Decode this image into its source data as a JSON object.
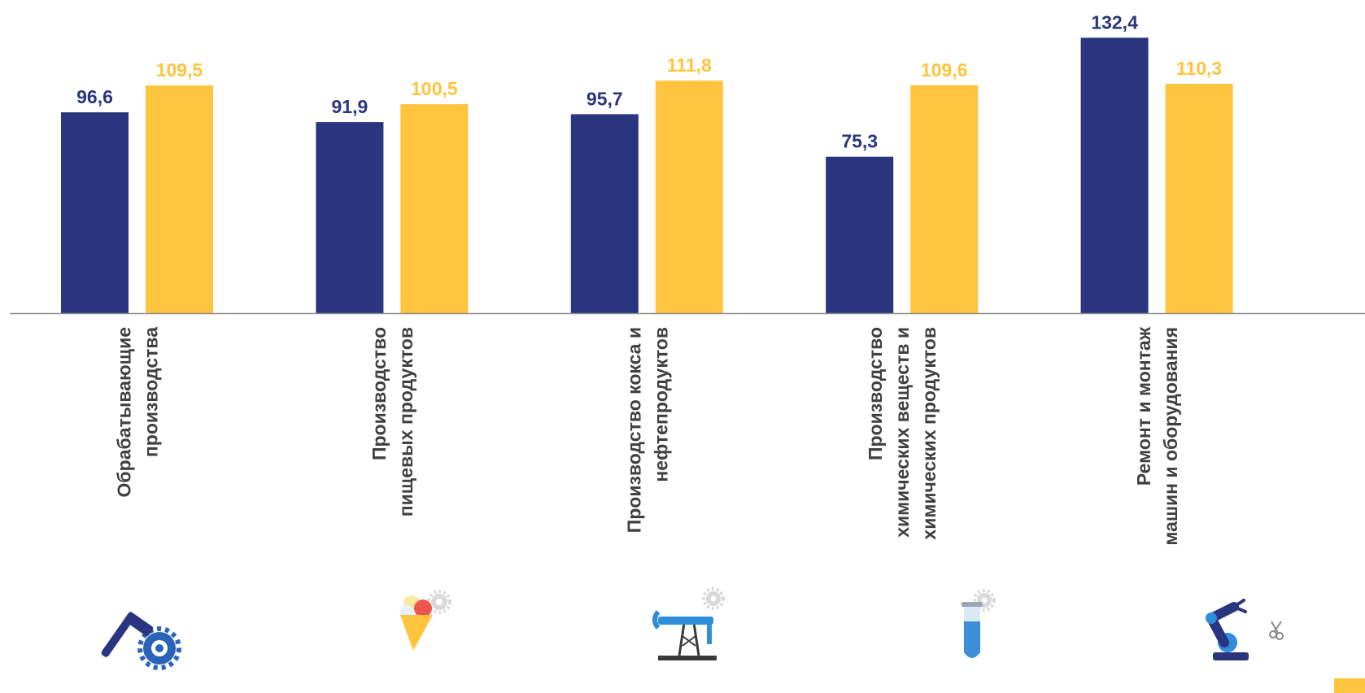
{
  "colors": {
    "series1": "#29357e",
    "series2": "#ffc43d",
    "axis": "#8c8c8c",
    "category_text": "#404040",
    "page_marker": "#ffc43d"
  },
  "chart_data": {
    "type": "bar",
    "title": "",
    "xlabel": "",
    "ylabel": "",
    "ylim": [
      0,
      140
    ],
    "grid": false,
    "legend": "none",
    "categories": [
      [
        "Обрабатывающие",
        "производства"
      ],
      [
        "Производство",
        "пищевых продуктов"
      ],
      [
        "Производство кокса и",
        "нефтепродуктов"
      ],
      [
        "Производство",
        "химических веществ и",
        "химических продуктов"
      ],
      [
        "Ремонт и монтаж",
        "машин и оборудования"
      ]
    ],
    "series": [
      {
        "values": [
          96.6,
          91.9,
          95.7,
          75.3,
          132.4
        ],
        "labels": [
          "96,6",
          "91,9",
          "95,7",
          "75,3",
          "132,4"
        ]
      },
      {
        "values": [
          109.5,
          100.5,
          111.8,
          109.6,
          110.3
        ],
        "labels": [
          "109,5",
          "100,5",
          "111,8",
          "109,6",
          "110,3"
        ]
      }
    ],
    "category_icons": [
      "hammer-gear-icon",
      "ice-cream-gear-icon",
      "oil-pump-gear-icon",
      "test-tube-gear-icon",
      "robot-arm-icon"
    ]
  }
}
